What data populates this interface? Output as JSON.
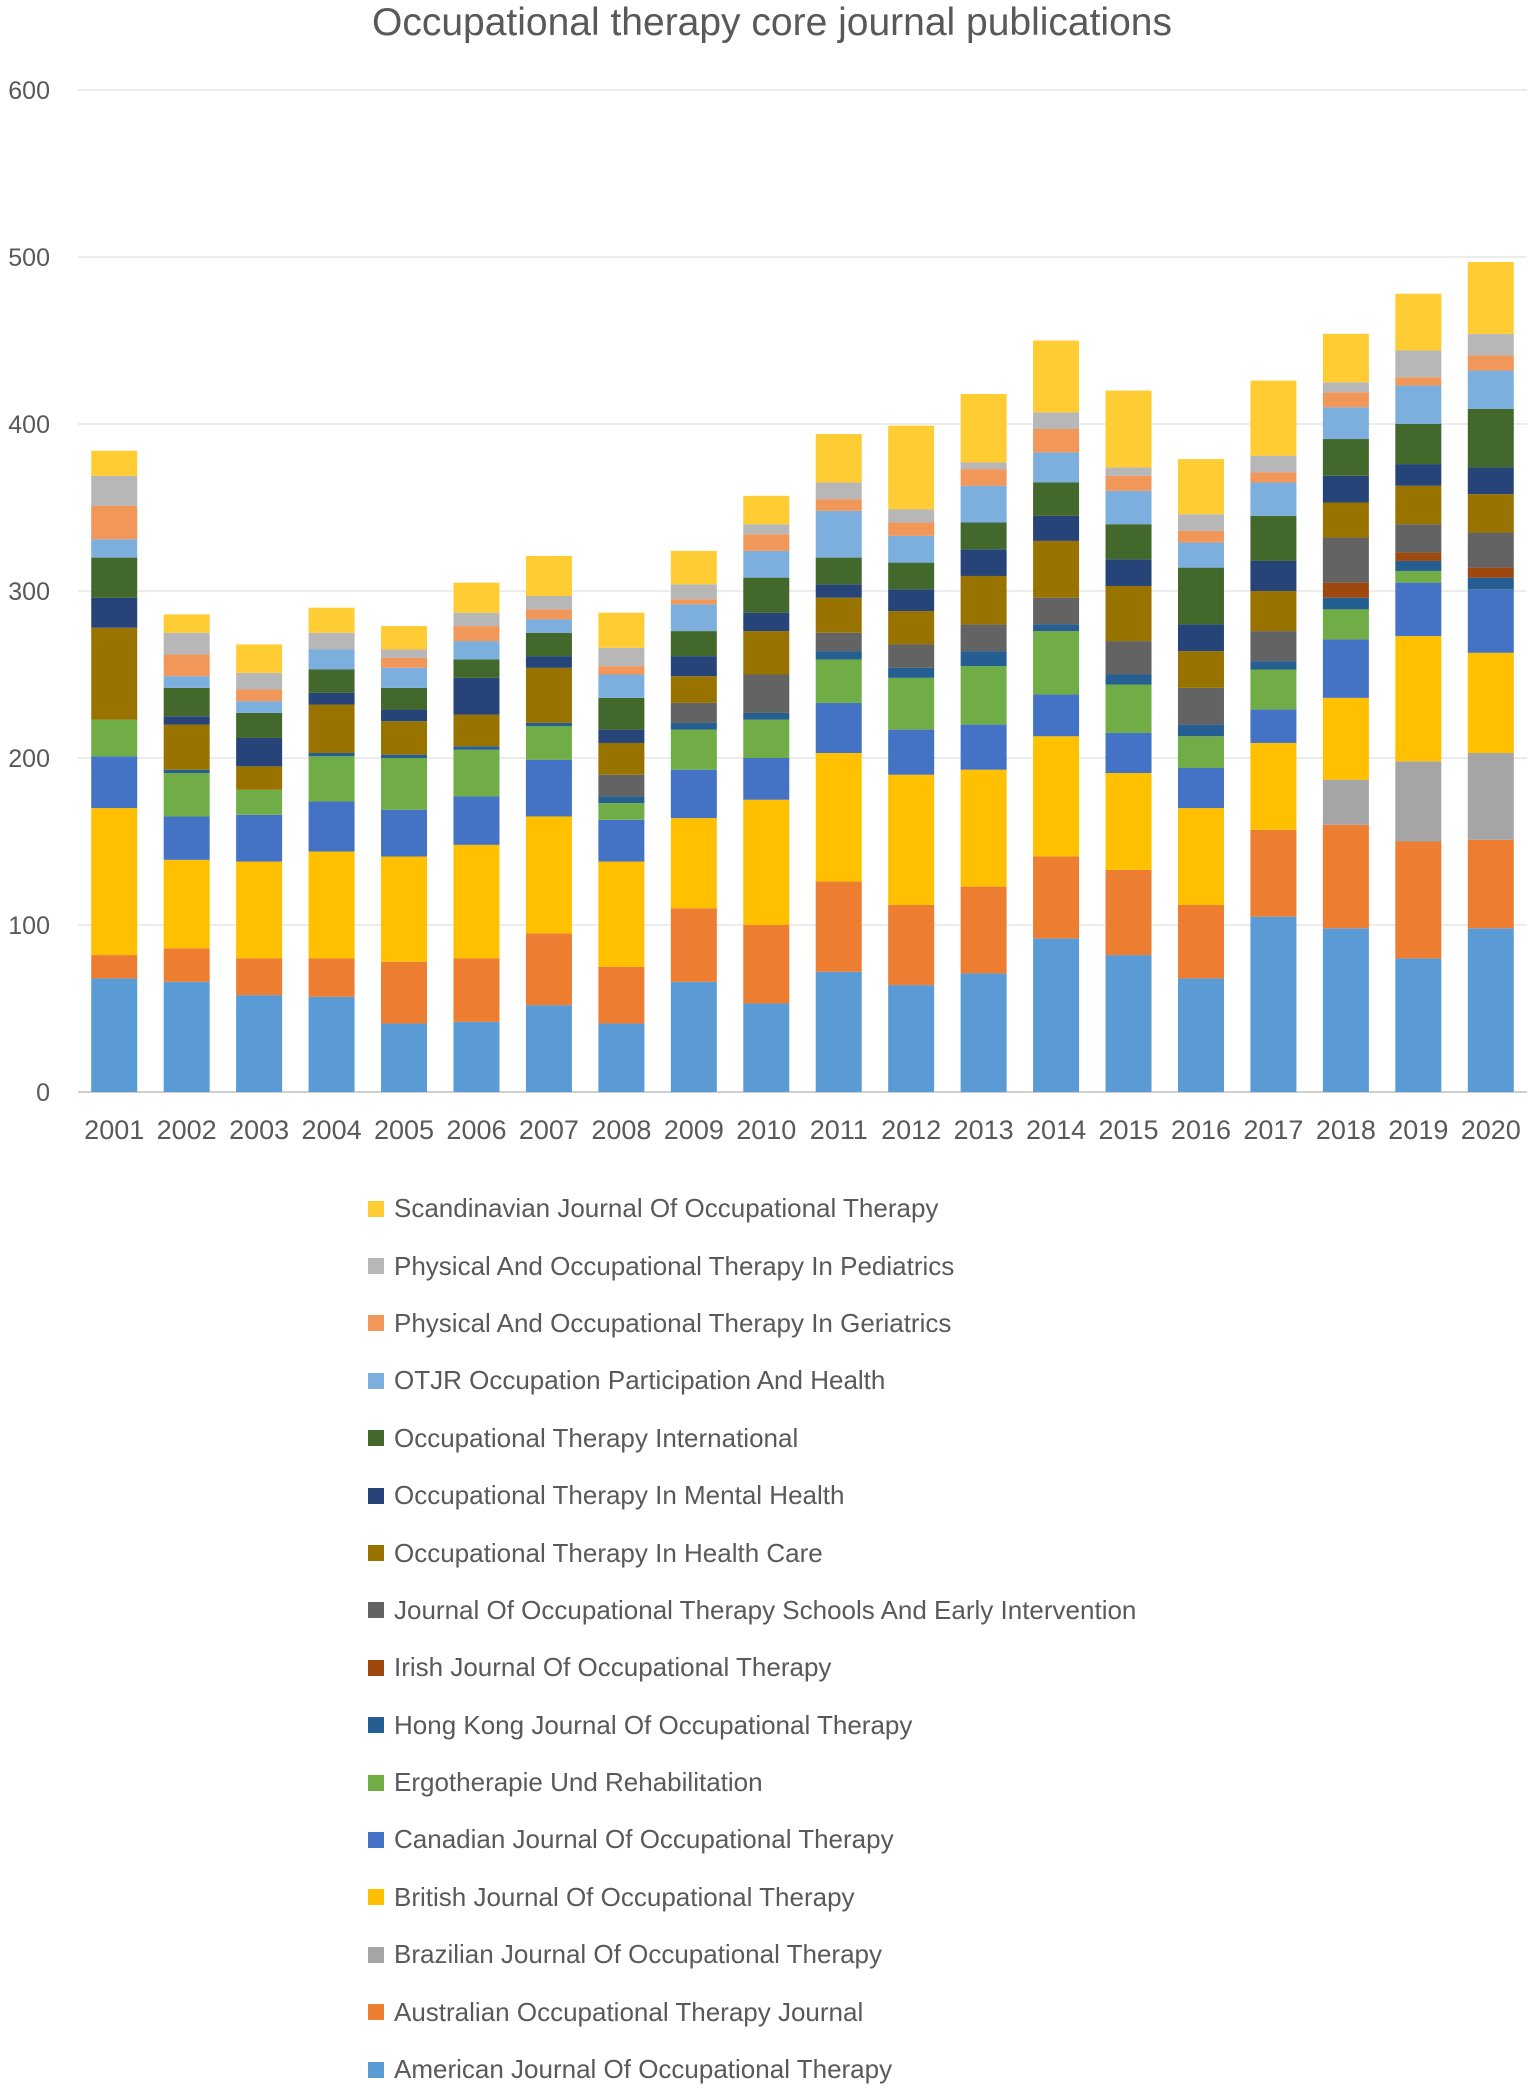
{
  "chart_data": {
    "type": "bar",
    "stacked": true,
    "title": "Occupational therapy core journal publications",
    "xlabel": "",
    "ylabel": "",
    "ylim": [
      0,
      600
    ],
    "yticks": [
      0,
      100,
      200,
      300,
      400,
      500,
      600
    ],
    "grid": "horizontal",
    "legend_position": "bottom",
    "categories": [
      "2001",
      "2002",
      "2003",
      "2004",
      "2005",
      "2006",
      "2007",
      "2008",
      "2009",
      "2010",
      "2011",
      "2012",
      "2013",
      "2014",
      "2015",
      "2016",
      "2017",
      "2018",
      "2019",
      "2020"
    ],
    "series": [
      {
        "name": "American Journal Of Occupational Therapy",
        "color": "#5B9BD5",
        "values": [
          68,
          66,
          58,
          57,
          41,
          42,
          52,
          41,
          66,
          53,
          72,
          64,
          71,
          92,
          82,
          68,
          105,
          98,
          80,
          98
        ]
      },
      {
        "name": "Australian Occupational Therapy Journal",
        "color": "#ED7D31",
        "values": [
          14,
          20,
          22,
          23,
          37,
          38,
          43,
          34,
          44,
          47,
          54,
          48,
          52,
          49,
          51,
          44,
          52,
          62,
          70,
          53
        ]
      },
      {
        "name": "Brazilian Journal Of Occupational Therapy",
        "color": "#A5A5A5",
        "values": [
          0,
          0,
          0,
          0,
          0,
          0,
          0,
          0,
          0,
          0,
          0,
          0,
          0,
          0,
          0,
          0,
          0,
          27,
          48,
          52
        ]
      },
      {
        "name": "British Journal Of Occupational Therapy",
        "color": "#FFC000",
        "values": [
          88,
          53,
          58,
          64,
          63,
          68,
          70,
          63,
          54,
          75,
          77,
          78,
          70,
          72,
          58,
          58,
          52,
          49,
          75,
          60
        ]
      },
      {
        "name": "Canadian Journal Of Occupational Therapy",
        "color": "#4472C4",
        "values": [
          31,
          26,
          28,
          30,
          28,
          29,
          34,
          25,
          29,
          25,
          30,
          27,
          27,
          25,
          24,
          24,
          20,
          35,
          32,
          38
        ]
      },
      {
        "name": "Ergotherapie Und Rehabilitation",
        "color": "#70AD47",
        "values": [
          22,
          26,
          15,
          27,
          31,
          28,
          20,
          10,
          24,
          23,
          26,
          31,
          35,
          38,
          29,
          19,
          24,
          18,
          7,
          0
        ]
      },
      {
        "name": "Hong Kong Journal Of Occupational Therapy",
        "color": "#255E91",
        "values": [
          0,
          2,
          0,
          2,
          2,
          2,
          2,
          4,
          4,
          4,
          5,
          6,
          9,
          4,
          6,
          7,
          5,
          7,
          6,
          7
        ]
      },
      {
        "name": "Irish Journal Of Occupational Therapy",
        "color": "#9E480E",
        "values": [
          0,
          0,
          0,
          0,
          0,
          0,
          0,
          0,
          0,
          0,
          0,
          0,
          0,
          0,
          0,
          0,
          0,
          9,
          5,
          6
        ]
      },
      {
        "name": "Journal Of Occupational Therapy Schools And Early Intervention",
        "color": "#636363",
        "values": [
          0,
          0,
          0,
          0,
          0,
          0,
          0,
          13,
          12,
          23,
          11,
          14,
          16,
          16,
          20,
          22,
          18,
          27,
          17,
          21
        ]
      },
      {
        "name": "Occupational Therapy In Health Care",
        "color": "#997300",
        "values": [
          55,
          27,
          14,
          29,
          20,
          19,
          33,
          19,
          16,
          26,
          21,
          20,
          29,
          34,
          33,
          22,
          24,
          21,
          23,
          23
        ]
      },
      {
        "name": "Occupational Therapy In Mental Health",
        "color": "#264478",
        "values": [
          18,
          5,
          17,
          7,
          7,
          22,
          7,
          8,
          12,
          11,
          8,
          13,
          16,
          15,
          16,
          16,
          18,
          16,
          13,
          16
        ]
      },
      {
        "name": "Occupational Therapy International",
        "color": "#43682B",
        "values": [
          24,
          17,
          15,
          14,
          13,
          11,
          14,
          19,
          15,
          21,
          16,
          16,
          16,
          20,
          21,
          34,
          27,
          22,
          24,
          35
        ]
      },
      {
        "name": "OTJR Occupation Participation And Health",
        "color": "#7CAFDD",
        "values": [
          11,
          7,
          7,
          12,
          12,
          11,
          8,
          14,
          16,
          16,
          28,
          16,
          22,
          18,
          20,
          15,
          20,
          19,
          23,
          23
        ]
      },
      {
        "name": "Physical And Occupational Therapy In Geriatrics",
        "color": "#F1975A",
        "values": [
          20,
          13,
          7,
          0,
          6,
          9,
          6,
          5,
          3,
          10,
          7,
          8,
          10,
          14,
          9,
          7,
          6,
          9,
          5,
          9
        ]
      },
      {
        "name": "Physical And Occupational Therapy In Pediatrics",
        "color": "#B7B7B7",
        "values": [
          18,
          13,
          10,
          10,
          5,
          8,
          8,
          11,
          9,
          6,
          10,
          8,
          4,
          10,
          5,
          10,
          10,
          6,
          16,
          13
        ]
      },
      {
        "name": "Scandinavian Journal Of Occupational Therapy",
        "color": "#FFCD33",
        "values": [
          15,
          11,
          17,
          15,
          14,
          18,
          24,
          21,
          20,
          17,
          29,
          50,
          41,
          43,
          46,
          33,
          45,
          29,
          34,
          43
        ]
      }
    ]
  }
}
